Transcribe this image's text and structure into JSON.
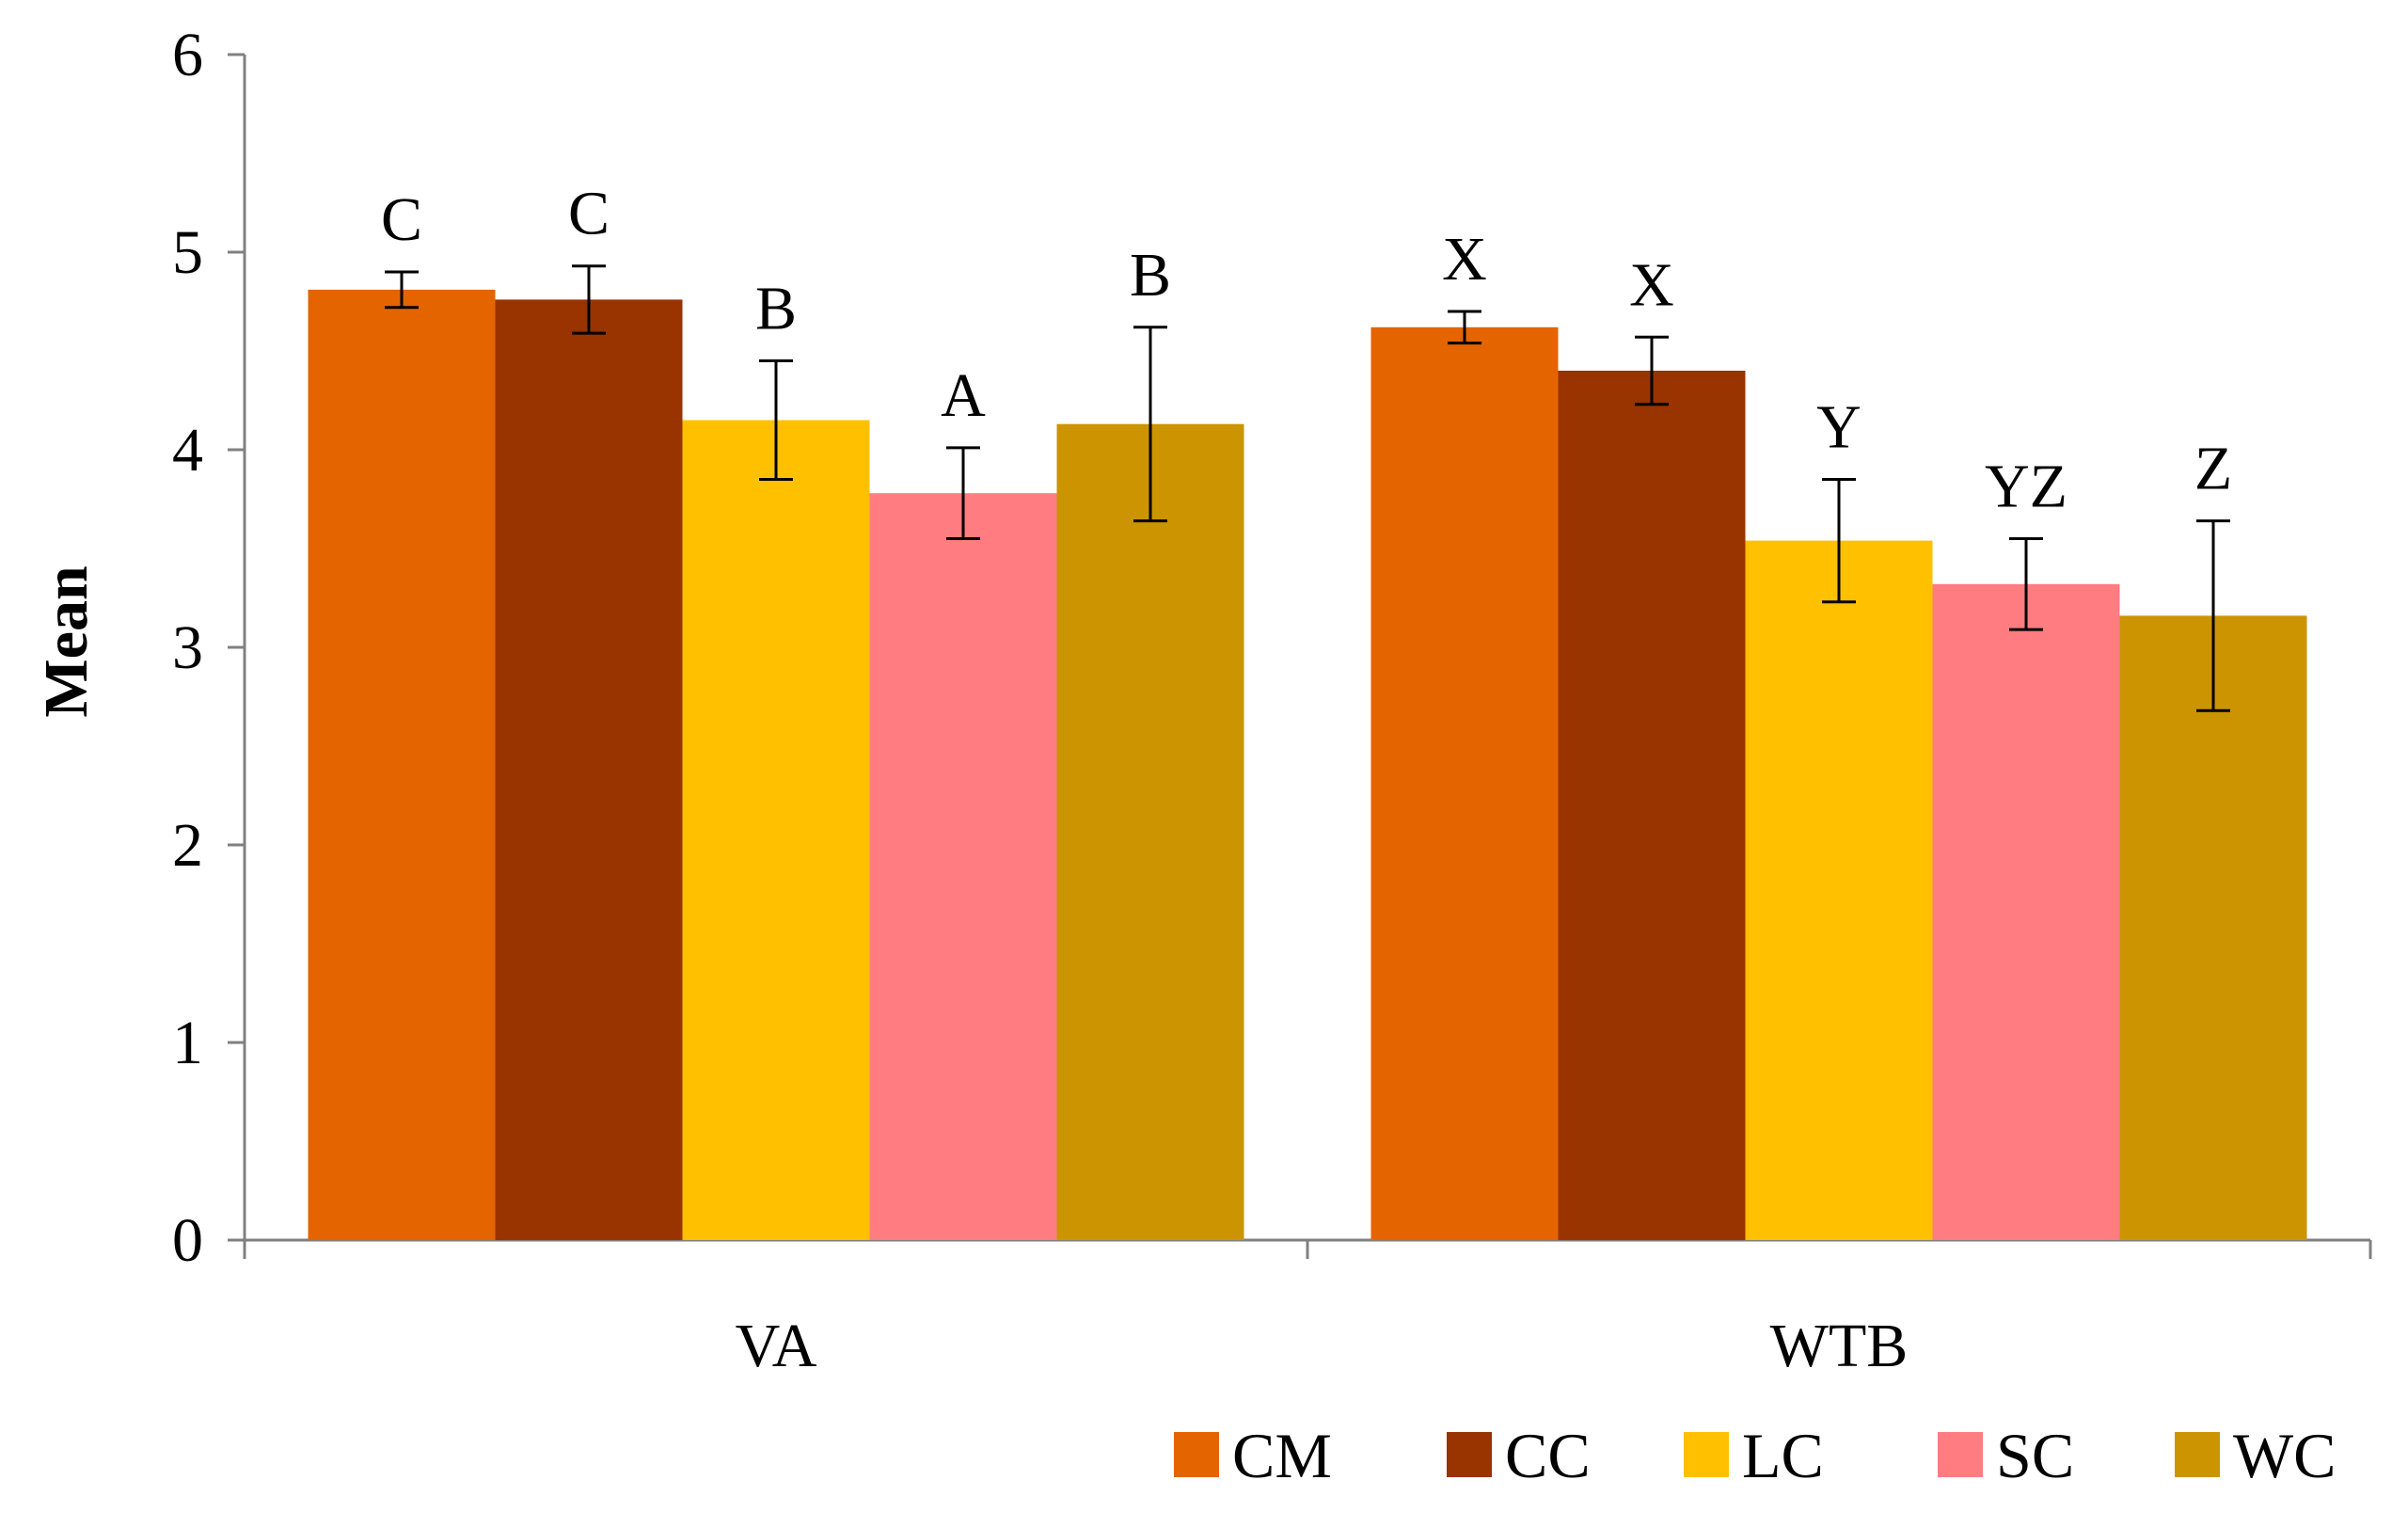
{
  "chart_data": {
    "type": "bar",
    "title": "",
    "xlabel": "",
    "ylabel": "Mean",
    "ylim": [
      0,
      6
    ],
    "yticks": [
      0,
      1,
      2,
      3,
      4,
      5,
      6
    ],
    "categories": [
      "VA",
      "WTB"
    ],
    "grid": false,
    "legend_position": "bottom-right",
    "series": [
      {
        "name": "CM",
        "color": "#E46400",
        "values": [
          4.81,
          4.62
        ],
        "errors": [
          0.09,
          0.08
        ],
        "letters": [
          "C",
          "X"
        ]
      },
      {
        "name": "CC",
        "color": "#993300",
        "values": [
          4.76,
          4.4
        ],
        "errors": [
          0.17,
          0.17
        ],
        "letters": [
          "C",
          "X"
        ]
      },
      {
        "name": "LC",
        "color": "#FFC000",
        "values": [
          4.15,
          3.54
        ],
        "errors": [
          0.3,
          0.31
        ],
        "letters": [
          "B",
          "Y"
        ]
      },
      {
        "name": "SC",
        "color": "#FF7C80",
        "values": [
          3.78,
          3.32
        ],
        "errors": [
          0.23,
          0.23
        ],
        "letters": [
          "A",
          "YZ"
        ]
      },
      {
        "name": "WC",
        "color": "#CC9400",
        "values": [
          4.13,
          3.16
        ],
        "errors": [
          0.49,
          0.48
        ],
        "letters": [
          "B",
          "Z"
        ]
      }
    ]
  }
}
